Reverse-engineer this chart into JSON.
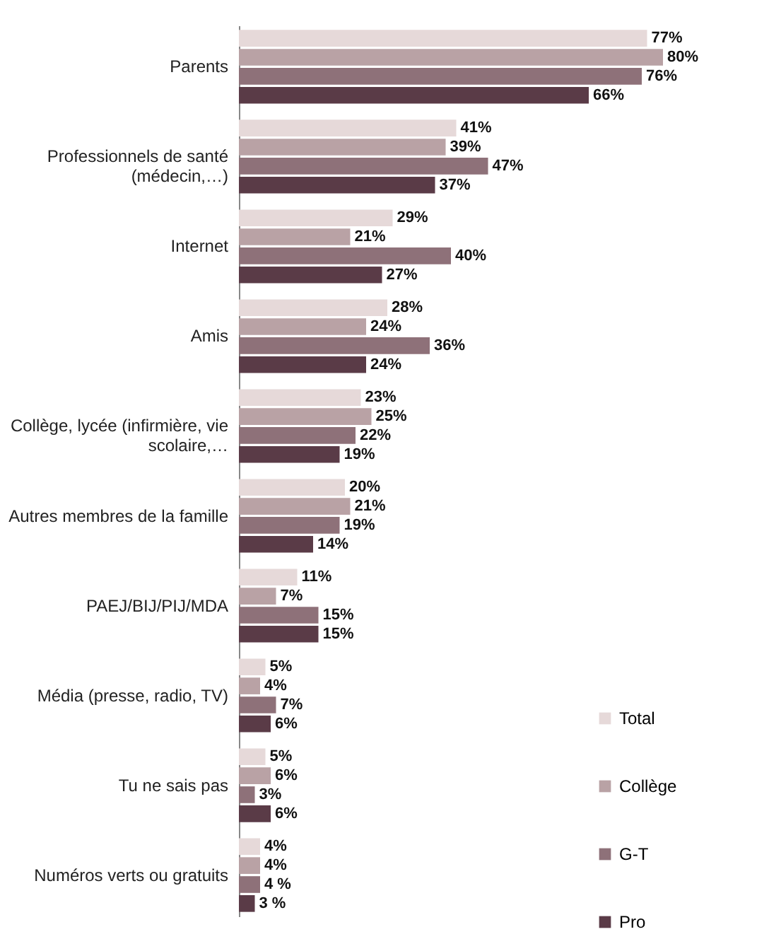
{
  "chart_data": {
    "type": "bar",
    "orientation": "horizontal",
    "categories": [
      "Parents",
      "Professionnels de santé (médecin,…)",
      "Internet",
      "Amis",
      "Collège, lycée (infirmière, vie scolaire,…",
      "Autres membres de la famille",
      "PAEJ/BIJ/PIJ/MDA",
      "Média (presse, radio, TV)",
      "Tu ne sais pas",
      "Numéros verts ou gratuits"
    ],
    "series": [
      {
        "name": "Total",
        "color": "#e6d9d9",
        "values": [
          77,
          41,
          29,
          28,
          23,
          20,
          11,
          5,
          5,
          4
        ],
        "value_labels": [
          "77%",
          "41%",
          "29%",
          "28%",
          "23%",
          "20%",
          "11%",
          "5%",
          "5%",
          "4%"
        ]
      },
      {
        "name": "Collège",
        "color": "#b9a2a5",
        "values": [
          80,
          39,
          21,
          24,
          25,
          21,
          7,
          4,
          6,
          4
        ],
        "value_labels": [
          "80%",
          "39%",
          "21%",
          "24%",
          "25%",
          "21%",
          "7%",
          "4%",
          "6%",
          "4%"
        ]
      },
      {
        "name": "G-T",
        "color": "#8e7179",
        "values": [
          76,
          47,
          40,
          36,
          22,
          19,
          15,
          7,
          3,
          4
        ],
        "value_labels": [
          "76%",
          "47%",
          "40%",
          "36%",
          "22%",
          "19%",
          "15%",
          "7%",
          "3%",
          "4 %"
        ]
      },
      {
        "name": "Pro",
        "color": "#5a3b47",
        "values": [
          66,
          37,
          27,
          24,
          19,
          14,
          15,
          6,
          6,
          3
        ],
        "value_labels": [
          "66%",
          "37%",
          "27%",
          "24%",
          "19%",
          "14%",
          "15%",
          "6%",
          "6%",
          "3 %"
        ]
      }
    ],
    "legend": "bottom right",
    "tick_labels": "y",
    "grid": false
  }
}
